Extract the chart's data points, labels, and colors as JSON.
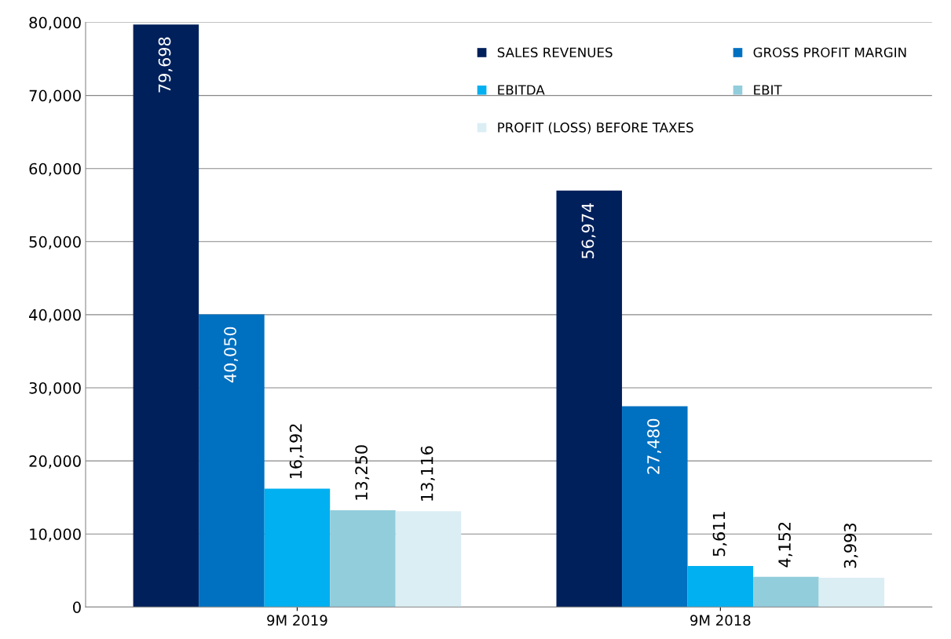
{
  "chart_data": {
    "type": "bar",
    "categories": [
      "9M 2019",
      "9M 2018"
    ],
    "series": [
      {
        "name": "SALES REVENUES",
        "color": "#00205b",
        "values": [
          79698,
          56974
        ],
        "value_labels": [
          "79,698",
          "56,974"
        ]
      },
      {
        "name": "GROSS PROFIT MARGIN",
        "color": "#0070c0",
        "values": [
          40050,
          27480
        ],
        "value_labels": [
          "40,050",
          "27,480"
        ]
      },
      {
        "name": "EBITDA",
        "color": "#00b0f0",
        "values": [
          16192,
          5611
        ],
        "value_labels": [
          "16,192",
          "5,611"
        ]
      },
      {
        "name": "EBIT",
        "color": "#92cddc",
        "values": [
          13250,
          4152
        ],
        "value_labels": [
          "13,250",
          "4,152"
        ]
      },
      {
        "name": "PROFIT (LOSS) BEFORE TAXES",
        "color": "#dbeef4",
        "values": [
          13116,
          3993
        ],
        "value_labels": [
          "13,116",
          "3,993"
        ]
      }
    ],
    "ylim": [
      0,
      80000
    ],
    "yticks": [
      {
        "value": 0,
        "label": "0"
      },
      {
        "value": 10000,
        "label": "10,000"
      },
      {
        "value": 20000,
        "label": "20,000"
      },
      {
        "value": 30000,
        "label": "30,000"
      },
      {
        "value": 40000,
        "label": "40,000"
      },
      {
        "value": 50000,
        "label": "50,000"
      },
      {
        "value": 60000,
        "label": "60,000"
      },
      {
        "value": 70000,
        "label": "70,000"
      },
      {
        "value": 80000,
        "label": "80,000"
      }
    ],
    "grid": "y",
    "legend": "top right"
  }
}
